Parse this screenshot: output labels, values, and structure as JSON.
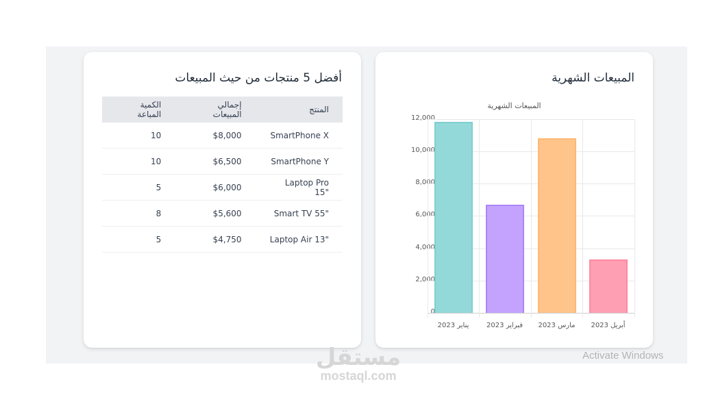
{
  "top_products": {
    "title": "أفضل 5 منتجات من حيث المبيعات",
    "columns": [
      "المنتج",
      "إجمالي المبيعات",
      "الكمية المباعة"
    ],
    "rows": [
      {
        "product": "SmartPhone X",
        "total": "$8,000",
        "qty": "10"
      },
      {
        "product": "SmartPhone Y",
        "total": "$6,500",
        "qty": "10"
      },
      {
        "product": "Laptop Pro 15\"",
        "total": "$6,000",
        "qty": "5"
      },
      {
        "product": "Smart TV 55\"",
        "total": "$5,600",
        "qty": "8"
      },
      {
        "product": "Laptop Air 13\"",
        "total": "$4,750",
        "qty": "5"
      }
    ]
  },
  "monthly_sales": {
    "title": "المبيعات الشهرية",
    "chart_title": "المبيعات الشهرية",
    "y_ticks": [
      "12,000",
      "10,000",
      "8,000",
      "6,000",
      "4,000",
      "2,000",
      "0"
    ],
    "colors": {
      "bar1_fill": "#94d9d9",
      "bar1_border": "#7fcfcf",
      "bar2_fill": "#c3a3fd",
      "bar2_border": "#ad85fb",
      "bar3_fill": "#fec48a",
      "bar3_border": "#fdb976",
      "bar4_fill": "#fe9fb3",
      "bar4_border": "#fd8aa2"
    }
  },
  "chart_data": {
    "type": "bar",
    "title": "المبيعات الشهرية",
    "categories": [
      "يناير 2023",
      "فبراير 2023",
      "مارس 2023",
      "أبريل 2023"
    ],
    "values": [
      11850,
      6700,
      10800,
      3300
    ],
    "xlabel": "",
    "ylabel": "",
    "ylim": [
      0,
      12000
    ],
    "grid": true,
    "legend": "none"
  },
  "watermarks": {
    "activate_windows": "Activate Windows",
    "logo_ar": "مستقل",
    "logo_en": "mostaql.com"
  }
}
